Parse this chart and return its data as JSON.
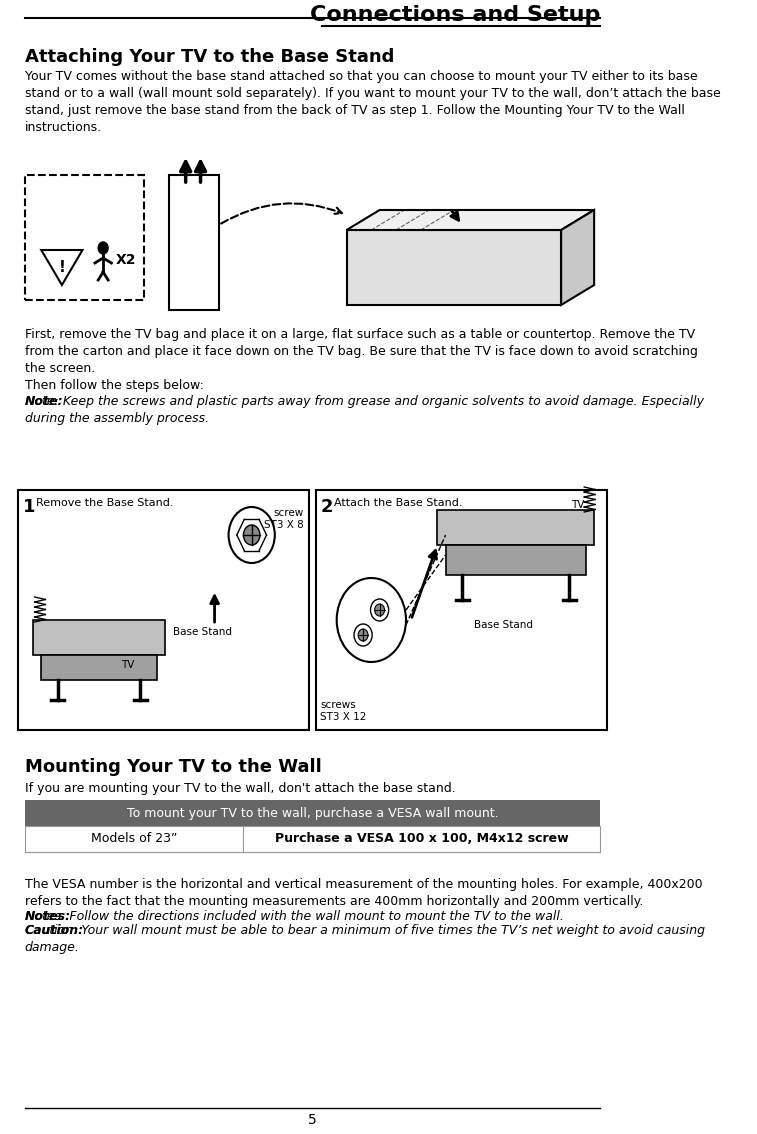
{
  "title": "Connections and Setup",
  "page_number": "5",
  "bg_color": "#ffffff",
  "text_color": "#000000",
  "section1_heading": "Attaching Your TV to the Base Stand",
  "section1_para1": "Your TV comes without the base stand attached so that you can choose to mount your TV either to its base\nstand or to a wall (wall mount sold separately). If you want to mount your TV to the wall, don’t attach the base\nstand, just remove the base stand from the back of TV as step 1. Follow the Mounting Your TV to the Wall\ninstructions.",
  "section1_para2": "First, remove the TV bag and place it on a large, flat surface such as a table or countertop. Remove the TV\nfrom the carton and place it face down on the TV bag. Be sure that the TV is face down to avoid scratching\nthe screen.\nThen follow the steps below:",
  "section1_note": "Note: Keep the screws and plastic parts away from grease and organic solvents to avoid damage. Especially\nduring the assembly process.",
  "section2_heading": "Mounting Your TV to the Wall",
  "section2_para": "If you are mounting your TV to the wall, don't attach the base stand.",
  "table_header": "To mount your TV to the wall, purchase a VESA wall mount.",
  "table_col1": "Models of 23”",
  "table_col2": "Purchase a VESA 100 x 100, M4x12 screw",
  "section2_para2": "The VESA number is the horizontal and vertical measurement of the mounting holes. For example, 400x200\nrefers to the fact that the mounting measurements are 400mm horizontally and 200mm vertically.",
  "section2_notes_line1": "Notes: Follow the directions included with the wall mount to mount the TV to the wall.",
  "section2_notes_line2": "Caution: Your wall mount must be able to bear a minimum of five times the TV’s net weight to avoid causing\ndamage.",
  "table_header_bg": "#666666",
  "table_header_color": "#ffffff",
  "step1_screw_label": "screw\nST3 X 8",
  "step2_screw_label": "screws\nST3 X 12"
}
